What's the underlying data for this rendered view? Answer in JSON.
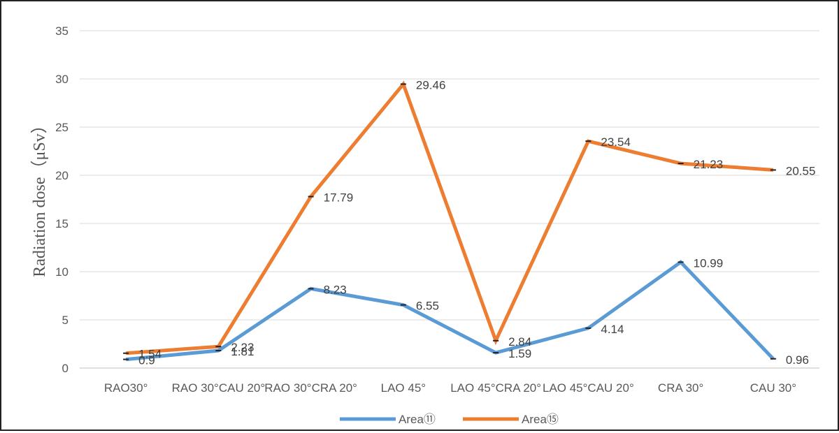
{
  "chart_data": {
    "type": "line",
    "title": "",
    "xlabel": "",
    "ylabel": "Radiation dose（μSv）",
    "ylim": [
      0,
      35
    ],
    "yticks": [
      0,
      5,
      10,
      15,
      20,
      25,
      30,
      35
    ],
    "grid": true,
    "legend_position": "bottom",
    "categories": [
      "RAO30°",
      "RAO 30°CAU 20°",
      "RAO 30°CRA 20°",
      "LAO 45°",
      "LAO 45°CRA 20°",
      "LAO 45°CAU 20°",
      "CRA 30°",
      "CAU 30°"
    ],
    "series": [
      {
        "name": "Area⑪",
        "color": "#5B9BD5",
        "values": [
          0.9,
          1.81,
          8.23,
          6.55,
          1.59,
          4.14,
          10.99,
          0.96
        ],
        "labels": [
          "0.9",
          "1.81",
          "8.23",
          "6.55",
          "1.59",
          "4.14",
          "10.99",
          "0.96"
        ]
      },
      {
        "name": "Area⑮",
        "color": "#ED7D31",
        "values": [
          1.54,
          2.23,
          17.79,
          29.46,
          2.84,
          23.54,
          21.23,
          20.55
        ],
        "labels": [
          "1.54",
          "2.23",
          "17.79",
          "29.46",
          "2.84",
          "23.54",
          "21.23",
          "20.55"
        ]
      }
    ]
  }
}
